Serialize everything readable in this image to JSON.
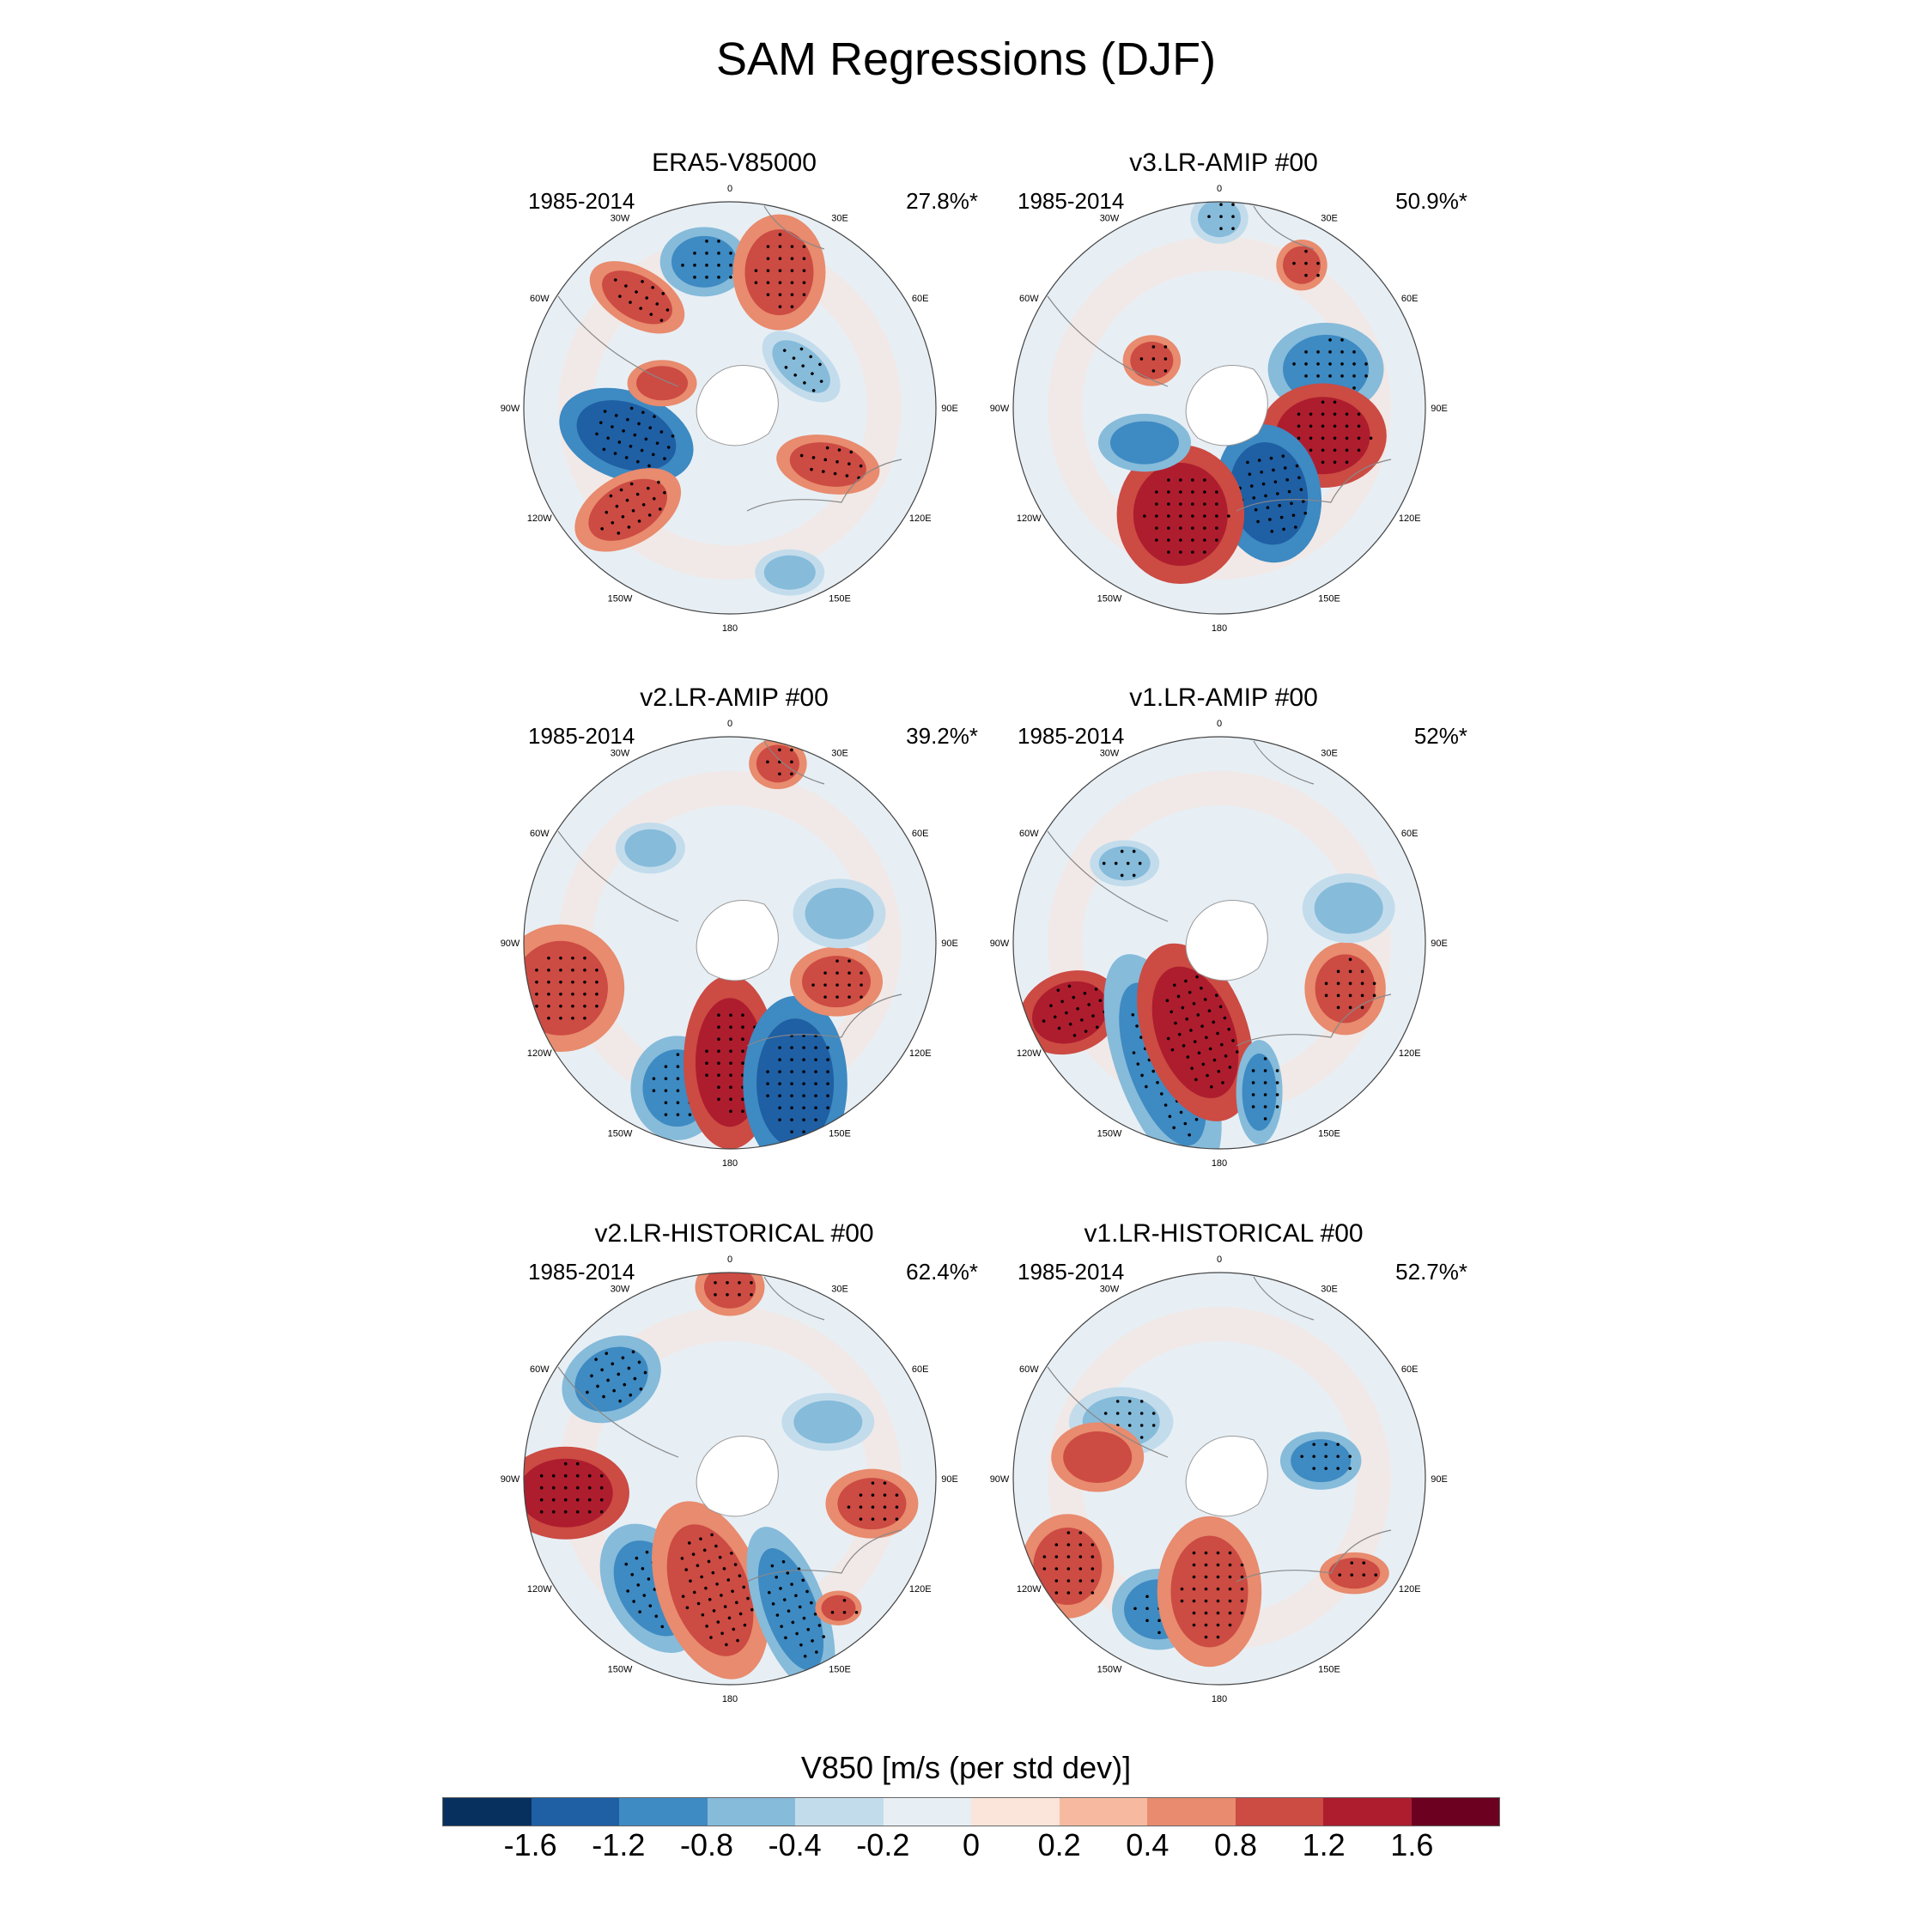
{
  "title": "SAM Regressions (DJF)",
  "lon_labels": [
    "0",
    "30E",
    "60E",
    "90E",
    "120E",
    "150E",
    "180",
    "150W",
    "120W",
    "90W",
    "60W",
    "30W"
  ],
  "panels": [
    {
      "title": "ERA5-V85000",
      "years": "1985-2014",
      "percent": "27.8%*"
    },
    {
      "title": "v3.LR-AMIP  #00",
      "years": "1985-2014",
      "percent": "50.9%*"
    },
    {
      "title": "v2.LR-AMIP  #00",
      "years": "1985-2014",
      "percent": "39.2%*"
    },
    {
      "title": "v1.LR-AMIP  #00",
      "years": "1985-2014",
      "percent": "52%*"
    },
    {
      "title": "v2.LR-HISTORICAL  #00",
      "years": "1985-2014",
      "percent": "62.4%*"
    },
    {
      "title": "v1.LR-HISTORICAL  #00",
      "years": "1985-2014",
      "percent": "52.7%*"
    }
  ],
  "colorbar": {
    "label": "V850 [m/s (per std dev)]",
    "colors": [
      "#07305f",
      "#1f5fa4",
      "#3e8ac2",
      "#86bbda",
      "#c3dcec",
      "#e7eff5",
      "#fbe4d9",
      "#f7baa0",
      "#e88b6e",
      "#cc4b43",
      "#ad1d2e",
      "#6b0020"
    ],
    "ticks": [
      "-1.6",
      "-1.2",
      "-0.8",
      "-0.4",
      "-0.2",
      "0",
      "0.2",
      "0.4",
      "0.8",
      "1.2",
      "1.6"
    ]
  }
}
